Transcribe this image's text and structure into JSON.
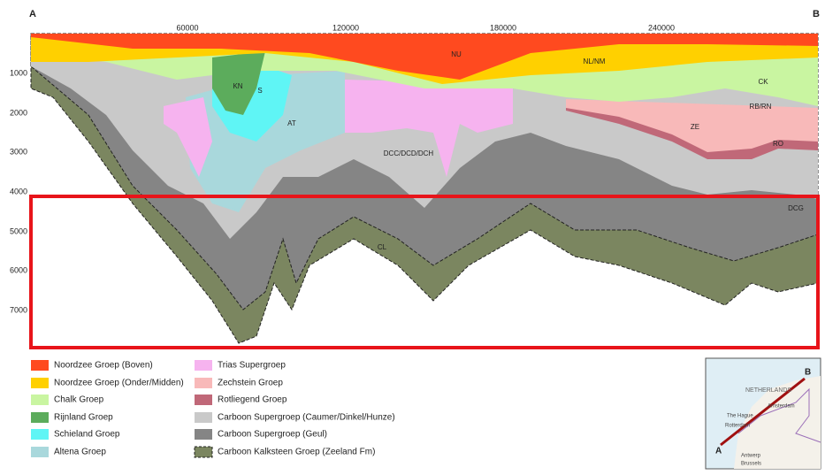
{
  "corners": {
    "left": "A",
    "right": "B"
  },
  "x_ticks": [
    "60000",
    "120000",
    "180000",
    "240000"
  ],
  "y_ticks": [
    "1000",
    "2000",
    "3000",
    "4000",
    "5000",
    "6000",
    "7000"
  ],
  "layer_labels": {
    "nu": "NU",
    "nl": "NL/NM",
    "kn": "KN",
    "s": "S",
    "ck": "CK",
    "rb": "RB/RN",
    "at": "AT",
    "ze": "ZE",
    "ro": "RO",
    "dcc": "DCC/DCD/DCH",
    "dcg": "DCG",
    "cl": "CL"
  },
  "legend": [
    "Noordzee Groep (Boven)",
    "Noordzee Groep (Onder/Midden)",
    "Chalk Groep",
    "Rijnland Groep",
    "Schieland Groep",
    "Altena Groep",
    "Trias Supergroep",
    "Zechstein Groep",
    "Rotliegend Groep",
    "Carboon Supergroep (Caumer/Dinkel/Hunze)",
    "Carboon Supergroep (Geul)",
    "Carboon Kalksteen Groep (Zeeland Fm)"
  ],
  "map": {
    "a": "A",
    "b": "B",
    "country": "NETHERLANDS",
    "cities": [
      "Amsterdam",
      "The Hague",
      "Rotterdam",
      "Antwerp",
      "Brussels"
    ]
  }
}
